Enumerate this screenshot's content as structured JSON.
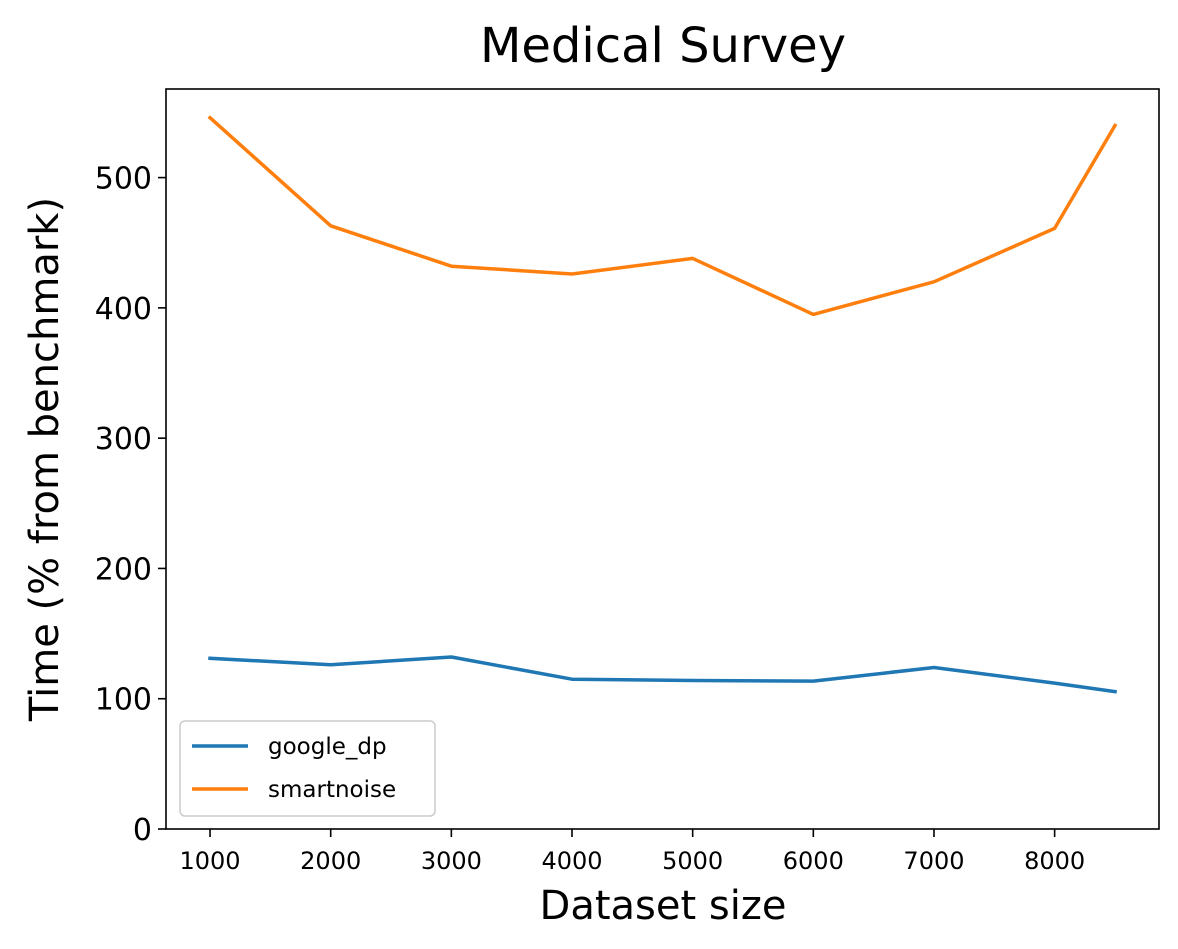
{
  "chart_data": {
    "type": "line",
    "title": "Medical Survey",
    "xlabel": "Dataset size",
    "ylabel": "Time (% from benchmark)",
    "x": [
      1000,
      2000,
      3000,
      4000,
      5000,
      6000,
      7000,
      8000,
      8500
    ],
    "xticks": [
      1000,
      2000,
      3000,
      4000,
      5000,
      6000,
      7000,
      8000
    ],
    "yticks": [
      0,
      100,
      200,
      300,
      400,
      500
    ],
    "xlim": [
      635,
      8865
    ],
    "ylim": [
      0,
      568
    ],
    "grid": false,
    "legend": "lower-left",
    "series": [
      {
        "name": "google_dp",
        "color": "#1f77b4",
        "values": [
          131,
          126,
          132,
          115,
          114,
          113.5,
          124,
          112,
          105.5
        ]
      },
      {
        "name": "smartnoise",
        "color": "#ff7f0e",
        "values": [
          546,
          463,
          432,
          426,
          438,
          395,
          420,
          461,
          540
        ]
      }
    ]
  }
}
